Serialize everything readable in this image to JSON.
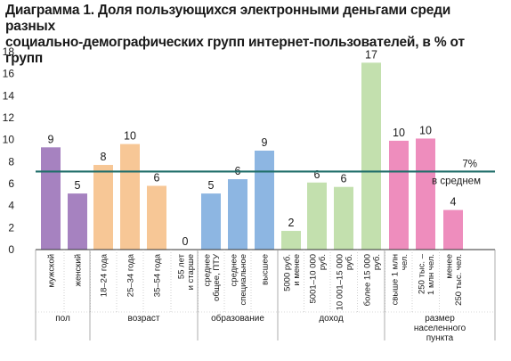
{
  "chart_data": {
    "type": "bar",
    "title": "Диаграмма 1. Доля пользующихся электронными деньгами среди разных социально-демографических групп интернет-пользователей, в % от групп",
    "title_lines": [
      "Диаграмма 1. Доля пользующихся электронными деньгами среди разных",
      "социально-демографических групп интернет-пользователей, в % от групп"
    ],
    "ylim": [
      0,
      18
    ],
    "yticks": [
      0,
      2,
      4,
      6,
      8,
      10,
      12,
      14,
      16,
      18
    ],
    "grid": false,
    "reference_line": {
      "value": 7.1,
      "label_value": "7%",
      "label_text": "в среднем",
      "color": "#1f6e6a"
    },
    "categories": [
      "мужской",
      "женский",
      "18–24 года",
      "25–34 года",
      "35–54 года",
      "55 лет и старше",
      "среднее общее, ПТУ",
      "среднее специальное",
      "высшее",
      "5000 руб. и менее",
      "5001–10 000 руб.",
      "10 001–15 000 руб.",
      "более 15 000 руб.",
      "свыше 1 млн чел.",
      "250 тыс. – 1 млн чел.",
      "менее 250 тыс. чел."
    ],
    "category_lines": [
      [
        "мужской"
      ],
      [
        "женский"
      ],
      [
        "18–24 года"
      ],
      [
        "25–34 года"
      ],
      [
        "35–54 года"
      ],
      [
        "55 лет",
        "и старше"
      ],
      [
        "среднее",
        "общее, ПТУ"
      ],
      [
        "среднее",
        "специальное"
      ],
      [
        "высшее"
      ],
      [
        "5000 руб.",
        "и менее"
      ],
      [
        "5001–10 000",
        "руб."
      ],
      [
        "10 001–15 000",
        "руб."
      ],
      [
        "более 15 000",
        "руб."
      ],
      [
        "свыше 1 млн",
        "чел."
      ],
      [
        "250 тыс. –",
        "1 млн чел."
      ],
      [
        "менее",
        "250 тыс. чел."
      ]
    ],
    "values": [
      9.3,
      5.1,
      7.7,
      9.6,
      5.8,
      0,
      5.1,
      6.4,
      9.0,
      1.7,
      6.1,
      5.7,
      17.0,
      9.9,
      10.1,
      3.6
    ],
    "value_labels": [
      "9",
      "5",
      "8",
      "10",
      "6",
      "0",
      "5",
      "6",
      "9",
      "2",
      "6",
      "6",
      "17",
      "10",
      "10",
      "4"
    ],
    "groups": [
      {
        "name": "пол",
        "name_lines": [
          "пол"
        ],
        "start": 0,
        "end": 1,
        "color": "#a682c0"
      },
      {
        "name": "возраст",
        "name_lines": [
          "возраст"
        ],
        "start": 2,
        "end": 5,
        "color": "#f7c796"
      },
      {
        "name": "образование",
        "name_lines": [
          "образование"
        ],
        "start": 6,
        "end": 8,
        "color": "#8db6e2"
      },
      {
        "name": "доход",
        "name_lines": [
          "доход"
        ],
        "start": 9,
        "end": 12,
        "color": "#c3e0ae"
      },
      {
        "name": "размер населенного пункта",
        "name_lines": [
          "размер",
          "населенного",
          "пункта"
        ],
        "start": 13,
        "end": 15,
        "color": "#ee8dbd"
      }
    ]
  }
}
